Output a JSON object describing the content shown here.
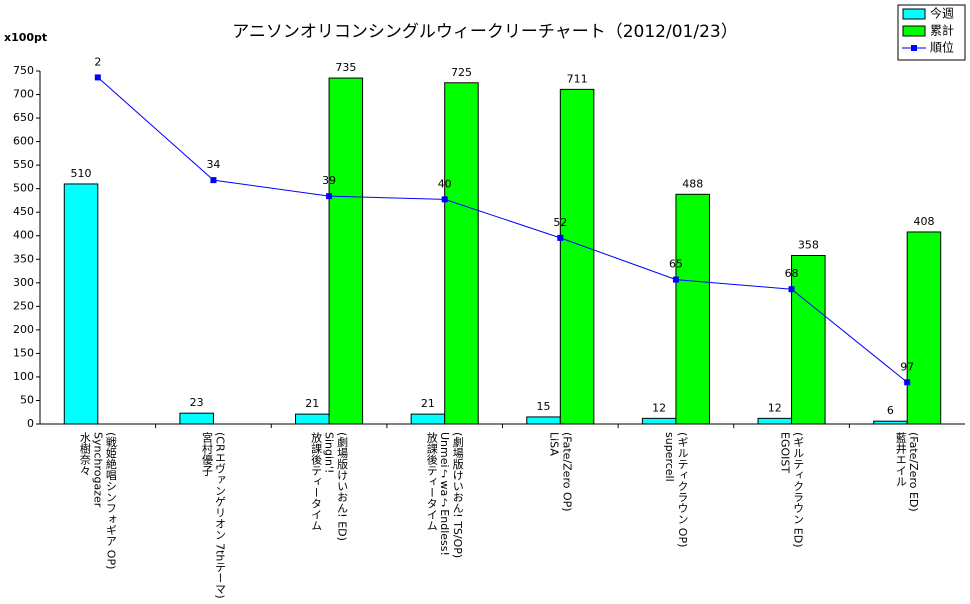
{
  "chart_data": {
    "type": "bar",
    "title": "アニソンオリコンシングルウィークリーチャート（2012/01/23）",
    "y_axis_label": "x100pt",
    "categories": [
      "水樹奈々\nSynchrogazer\n(戦姫絶唱シンフォギア OP)",
      "宮村優子\n(CRエヴァンゲリオン 7thテーマ)",
      "放課後ティータイム\nSingin'!\n(劇場版けいおん! ED)",
      "放課後ティータイム\nUnmei♪wa♪Endless!\n(劇場版けいおん! TS/OP)",
      "LiSA\n(Fate/Zero OP)",
      "supercell\n(ギルティクラウン OP)",
      "EGOIST\n(ギルティクラウン ED)",
      "藍井エイル\n(Fate/Zero ED)"
    ],
    "series": [
      {
        "name": "今週",
        "color": "#00ffff",
        "type": "bar",
        "values": [
          510,
          23,
          21,
          21,
          15,
          12,
          12,
          6
        ]
      },
      {
        "name": "累計",
        "color": "#00ff00",
        "type": "bar",
        "values": [
          null,
          null,
          735,
          725,
          711,
          488,
          358,
          408
        ]
      },
      {
        "name": "順位",
        "color": "#0000ff",
        "type": "line",
        "axis": "y2",
        "values": [
          2,
          34,
          39,
          40,
          52,
          65,
          68,
          97
        ]
      }
    ],
    "ylim": [
      0,
      750
    ],
    "yticks": [
      0,
      50,
      100,
      150,
      200,
      250,
      300,
      350,
      400,
      450,
      500,
      550,
      600,
      650,
      700,
      750
    ],
    "y2lim": [
      110,
      0
    ],
    "grid": false
  }
}
